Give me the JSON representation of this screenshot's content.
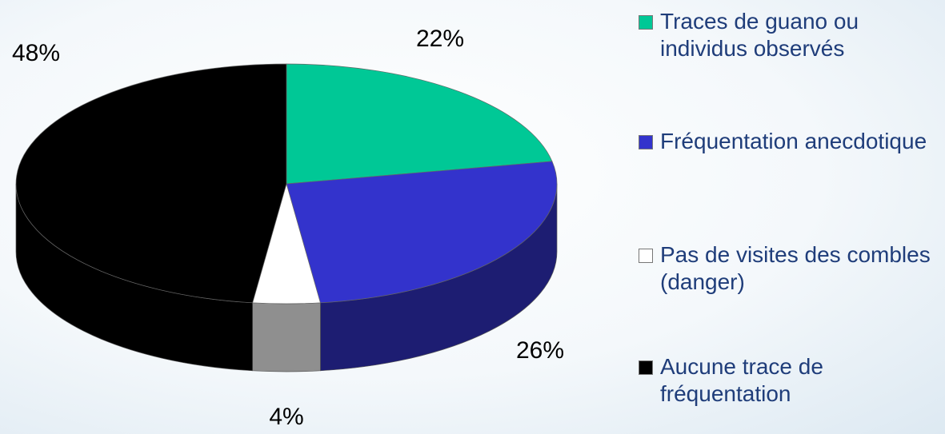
{
  "chart_data": {
    "type": "pie",
    "categories": [
      "Traces de guano ou individus observés",
      "Fréquentation anecdotique",
      "Pas de visites des combles (danger)",
      "Aucune trace de fréquentation"
    ],
    "values": [
      22,
      26,
      4,
      48
    ],
    "value_labels": [
      "22%",
      "26%",
      "4%",
      "48%"
    ],
    "colors": [
      "#00c896",
      "#3333cc",
      "#ffffff",
      "#000000"
    ],
    "legend": "right"
  }
}
